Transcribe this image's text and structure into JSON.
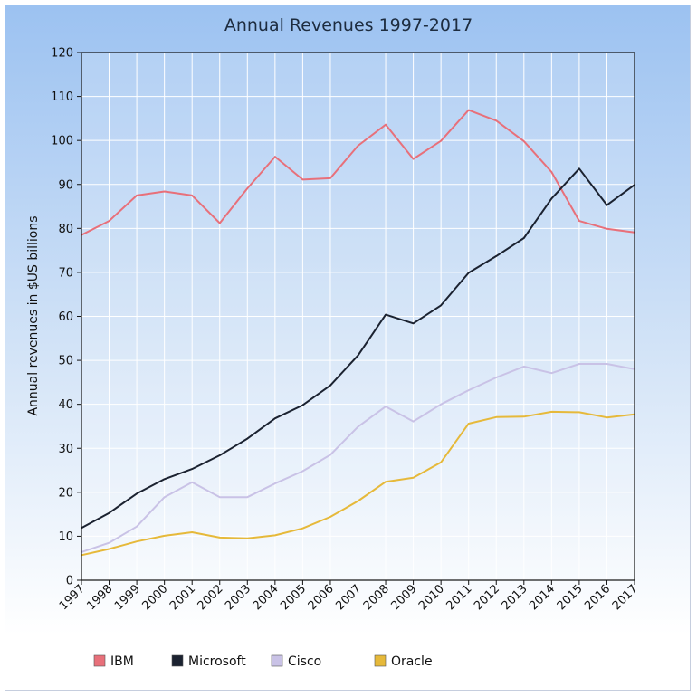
{
  "chart_data": {
    "type": "line",
    "title": "Annual Revenues 1997-2017",
    "xlabel": "",
    "ylabel": "Annual revenues in $US billions",
    "ylim": [
      0,
      120
    ],
    "yticks": [
      0,
      10,
      20,
      30,
      40,
      50,
      60,
      70,
      80,
      90,
      100,
      110,
      120
    ],
    "categories": [
      "1997",
      "1998",
      "1999",
      "2000",
      "2001",
      "2002",
      "2003",
      "2004",
      "2005",
      "2006",
      "2007",
      "2008",
      "2009",
      "2010",
      "2011",
      "2012",
      "2013",
      "2014",
      "2015",
      "2016",
      "2017"
    ],
    "grid": true,
    "legend_position": "bottom",
    "series": [
      {
        "name": "IBM",
        "color": "#e8707a",
        "values": [
          78.5,
          81.7,
          87.5,
          88.4,
          87.5,
          81.2,
          89.1,
          96.3,
          91.1,
          91.4,
          98.8,
          103.6,
          95.8,
          99.9,
          106.9,
          104.5,
          99.8,
          92.8,
          81.7,
          79.9,
          79.1
        ]
      },
      {
        "name": "Microsoft",
        "color": "#1b2230",
        "values": [
          11.9,
          15.3,
          19.7,
          23.0,
          25.3,
          28.4,
          32.2,
          36.8,
          39.8,
          44.3,
          51.1,
          60.4,
          58.4,
          62.5,
          69.9,
          73.7,
          77.8,
          86.8,
          93.6,
          85.3,
          89.9
        ]
      },
      {
        "name": "Cisco",
        "color": "#c9c2e6",
        "values": [
          6.4,
          8.5,
          12.2,
          18.9,
          22.3,
          18.9,
          18.9,
          22.0,
          24.8,
          28.5,
          34.9,
          39.5,
          36.1,
          40.0,
          43.2,
          46.1,
          48.6,
          47.1,
          49.2,
          49.2,
          48.0
        ]
      },
      {
        "name": "Oracle",
        "color": "#e6b93a",
        "values": [
          5.7,
          7.1,
          8.8,
          10.1,
          10.9,
          9.7,
          9.5,
          10.2,
          11.8,
          14.4,
          18.0,
          22.4,
          23.3,
          26.8,
          35.6,
          37.1,
          37.2,
          38.3,
          38.2,
          37.0,
          37.7
        ]
      }
    ]
  }
}
